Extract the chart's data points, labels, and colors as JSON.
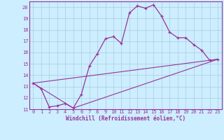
{
  "xlabel": "Windchill (Refroidissement éolien,°C)",
  "bg_color": "#cceeff",
  "line_color": "#993399",
  "grid_color": "#aaccdd",
  "xlim": [
    -0.5,
    23.5
  ],
  "ylim": [
    11,
    20.5
  ],
  "xticks": [
    0,
    1,
    2,
    3,
    4,
    5,
    6,
    7,
    8,
    9,
    10,
    11,
    12,
    13,
    14,
    15,
    16,
    17,
    18,
    19,
    20,
    21,
    22,
    23
  ],
  "yticks": [
    11,
    12,
    13,
    14,
    15,
    16,
    17,
    18,
    19,
    20
  ],
  "series_main": [
    [
      0,
      13.3
    ],
    [
      1,
      12.8
    ],
    [
      2,
      11.2
    ],
    [
      3,
      11.3
    ],
    [
      4,
      11.5
    ],
    [
      5,
      11.1
    ],
    [
      6,
      12.3
    ],
    [
      7,
      14.8
    ],
    [
      8,
      15.9
    ],
    [
      9,
      17.2
    ],
    [
      10,
      17.4
    ],
    [
      11,
      16.8
    ],
    [
      12,
      19.5
    ],
    [
      13,
      20.1
    ],
    [
      14,
      19.9
    ],
    [
      15,
      20.2
    ],
    [
      16,
      19.2
    ],
    [
      17,
      17.8
    ],
    [
      18,
      17.3
    ],
    [
      19,
      17.3
    ],
    [
      20,
      16.7
    ],
    [
      21,
      16.2
    ],
    [
      22,
      15.3
    ],
    [
      23,
      15.4
    ]
  ],
  "series_line1": [
    [
      0,
      13.3
    ],
    [
      23,
      15.4
    ]
  ],
  "series_line2": [
    [
      0,
      13.3
    ],
    [
      5,
      11.1
    ],
    [
      23,
      15.4
    ]
  ]
}
